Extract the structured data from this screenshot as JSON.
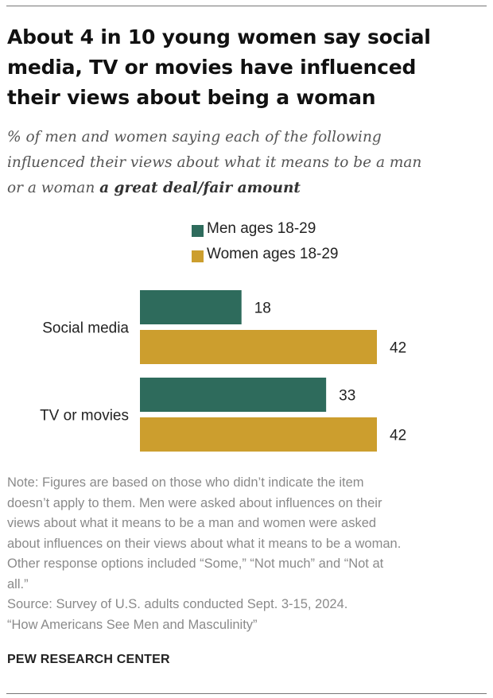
{
  "title_lines": [
    "About 4 in 10 young women say social",
    "media, TV or movies have influenced",
    "their views about being a woman"
  ],
  "subtitle": {
    "line1": "% of men and women saying each of the following",
    "line2": "influenced their views about what it means to be a man",
    "line3": "or a woman ",
    "emphasis": "a great deal/fair amount"
  },
  "colors": {
    "men": "#2e6b5c",
    "women": "#cc9e2e"
  },
  "chart_data": {
    "type": "bar",
    "orientation": "horizontal",
    "categories": [
      "Social media",
      "TV or movies"
    ],
    "series": [
      {
        "name": "Men ages 18-29",
        "values": [
          18,
          33
        ]
      },
      {
        "name": "Women ages 18-29",
        "values": [
          42,
          42
        ]
      }
    ],
    "xlim": [
      0,
      42
    ],
    "grid": false,
    "legend_position": "top"
  },
  "notes": [
    "Note: Figures are based on those who didn’t indicate the item",
    "doesn’t apply to them. Men were asked about influences on their",
    "views about what it means to be a man and women were asked",
    "about influences on their views about what it means to be a woman.",
    "Other response options included “Some,” “Not much” and “Not at",
    "all.”",
    "Source: Survey of U.S. adults conducted Sept. 3-15, 2024.",
    "“How Americans See Men and Masculinity”"
  ],
  "brand": "PEW RESEARCH CENTER"
}
